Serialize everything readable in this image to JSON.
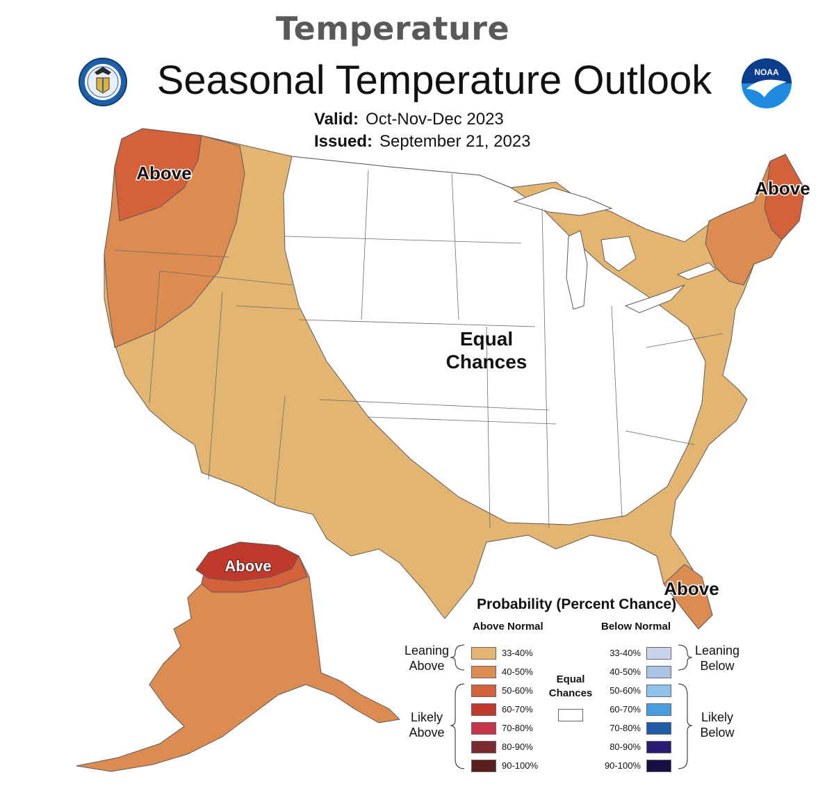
{
  "heading": "Temperature",
  "title": "Seasonal Temperature Outlook",
  "valid": {
    "label": "Valid:",
    "value": "Oct-Nov-Dec 2023"
  },
  "issued": {
    "label": "Issued:",
    "value": "September 21, 2023"
  },
  "logos": {
    "left": "doc-seal-icon",
    "right": "noaa-logo-icon"
  },
  "region_labels": {
    "northwest": "Above",
    "northeast": "Above",
    "florida": "Above",
    "alaska": "Above",
    "center_line1": "Equal",
    "center_line2": "Chances"
  },
  "legend": {
    "title": "Probability (Percent Chance)",
    "above_header": "Above Normal",
    "below_header": "Below Normal",
    "equal_line1": "Equal",
    "equal_line2": "Chances",
    "leaning_above_1": "Leaning",
    "leaning_above_2": "Above",
    "likely_above_1": "Likely",
    "likely_above_2": "Above",
    "leaning_below_1": "Leaning",
    "leaning_below_2": "Below",
    "likely_below_1": "Likely",
    "likely_below_2": "Below",
    "above": [
      {
        "range": "33-40%",
        "color": "#e3b571"
      },
      {
        "range": "40-50%",
        "color": "#dc8b51"
      },
      {
        "range": "50-60%",
        "color": "#d4613a"
      },
      {
        "range": "60-70%",
        "color": "#c0392b"
      },
      {
        "range": "70-80%",
        "color": "#c8354a"
      },
      {
        "range": "80-90%",
        "color": "#7b2a30"
      },
      {
        "range": "90-100%",
        "color": "#5a1e1e"
      }
    ],
    "below": [
      {
        "range": "33-40%",
        "color": "#c9d3ec"
      },
      {
        "range": "40-50%",
        "color": "#aac4e8"
      },
      {
        "range": "50-60%",
        "color": "#8fc2ea"
      },
      {
        "range": "60-70%",
        "color": "#4a9ee0"
      },
      {
        "range": "70-80%",
        "color": "#1f5da8"
      },
      {
        "range": "80-90%",
        "color": "#2b1a72"
      },
      {
        "range": "90-100%",
        "color": "#180f45"
      }
    ],
    "equal_color": "#ffffff"
  }
}
